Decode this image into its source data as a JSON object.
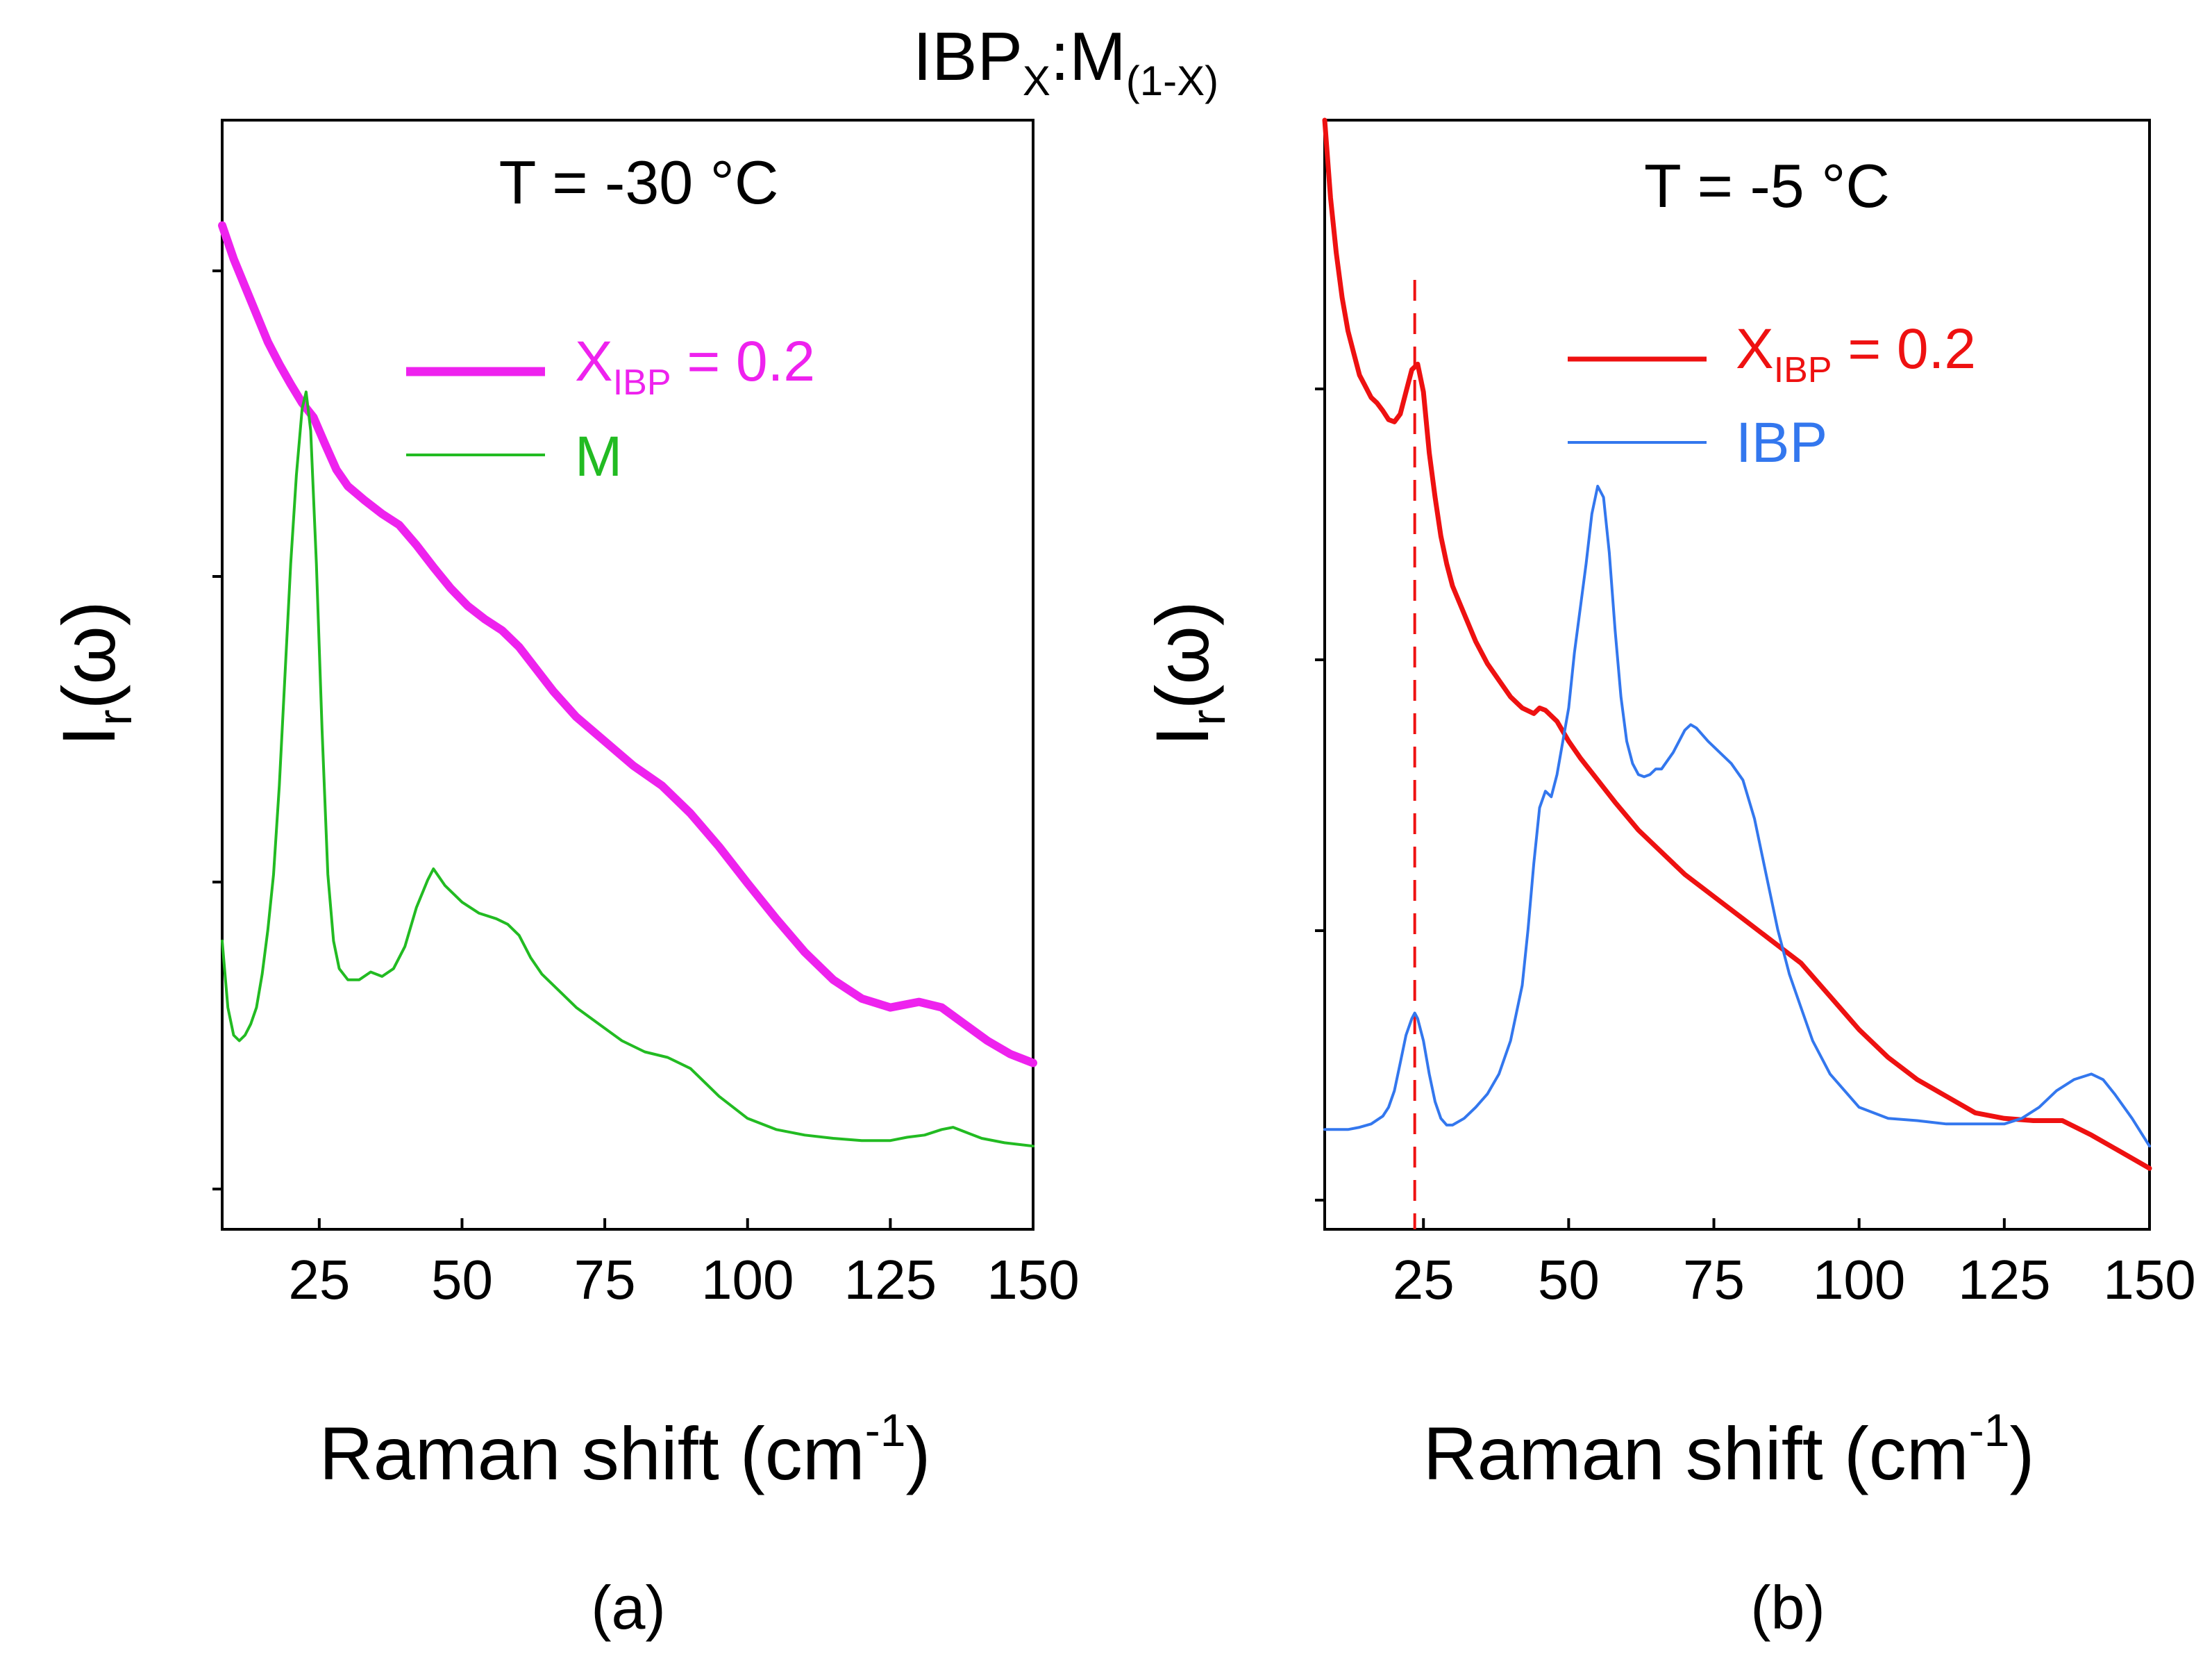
{
  "figure": {
    "title_main": "IBP",
    "title_sub1": "X",
    "title_sep": ":M",
    "title_sub2": "(1-X)"
  },
  "chart_data": [
    {
      "type": "line",
      "panel_caption": "(a)",
      "title": "T = -30 °C",
      "xlabel_main": "Raman shift (cm",
      "xlabel_sup": "-1",
      "xlabel_end": ")",
      "ylabel_main": "I",
      "ylabel_sub": "r",
      "ylabel_end": "(ω)",
      "xlim": [
        8,
        150
      ],
      "ylim": [
        0,
        1
      ],
      "xticks": [
        "25",
        "50",
        "75",
        "100",
        "125",
        "150"
      ],
      "legend_position": "top-right",
      "series": [
        {
          "name_main": "X",
          "name_sub": "IBP",
          "name_end": " = 0.2",
          "color": "#ee22ee",
          "x": [
            8,
            10,
            12,
            14,
            16,
            18,
            20,
            22,
            24,
            26,
            28,
            30,
            33,
            36,
            39,
            42,
            45,
            48,
            51,
            54,
            57,
            60,
            63,
            66,
            70,
            75,
            80,
            85,
            90,
            95,
            100,
            105,
            110,
            115,
            120,
            125,
            130,
            134,
            138,
            142,
            146,
            150
          ],
          "y": [
            0.905,
            0.875,
            0.85,
            0.825,
            0.8,
            0.78,
            0.762,
            0.745,
            0.732,
            0.708,
            0.685,
            0.67,
            0.657,
            0.645,
            0.635,
            0.617,
            0.597,
            0.578,
            0.562,
            0.55,
            0.54,
            0.525,
            0.505,
            0.485,
            0.462,
            0.44,
            0.418,
            0.4,
            0.375,
            0.345,
            0.312,
            0.28,
            0.25,
            0.225,
            0.208,
            0.2,
            0.205,
            0.2,
            0.185,
            0.17,
            0.158,
            0.15
          ]
        },
        {
          "name_main": "M",
          "name_sub": "",
          "name_end": "",
          "color": "#22bb22",
          "x": [
            8,
            9,
            10,
            11,
            12,
            13,
            14,
            15,
            16,
            17,
            18,
            19,
            20,
            21,
            22,
            22.7,
            23.5,
            24.5,
            25.5,
            26.5,
            27.5,
            28.5,
            30,
            32,
            34,
            36,
            38,
            40,
            42,
            44,
            45,
            47,
            50,
            53,
            56,
            58,
            60,
            62,
            64,
            67,
            70,
            74,
            78,
            82,
            86,
            90,
            95,
            100,
            105,
            110,
            115,
            120,
            125,
            128,
            131,
            134,
            136,
            138,
            141,
            145,
            150
          ],
          "y": [
            0.26,
            0.2,
            0.175,
            0.17,
            0.175,
            0.185,
            0.2,
            0.23,
            0.27,
            0.32,
            0.4,
            0.5,
            0.6,
            0.68,
            0.74,
            0.755,
            0.72,
            0.6,
            0.45,
            0.32,
            0.26,
            0.235,
            0.225,
            0.225,
            0.232,
            0.228,
            0.235,
            0.255,
            0.29,
            0.315,
            0.325,
            0.31,
            0.295,
            0.285,
            0.28,
            0.275,
            0.265,
            0.245,
            0.23,
            0.215,
            0.2,
            0.185,
            0.17,
            0.16,
            0.155,
            0.145,
            0.12,
            0.1,
            0.09,
            0.085,
            0.082,
            0.08,
            0.08,
            0.083,
            0.085,
            0.09,
            0.092,
            0.088,
            0.082,
            0.078,
            0.075
          ]
        }
      ]
    },
    {
      "type": "line",
      "panel_caption": "(b)",
      "title": "T = -5 °C",
      "xlabel_main": "Raman shift (cm",
      "xlabel_sup": "-1",
      "xlabel_end": ")",
      "ylabel_main": "I",
      "ylabel_sub": "r",
      "ylabel_end": "(ω)",
      "xlim": [
        8,
        150
      ],
      "ylim": [
        0,
        1
      ],
      "xticks": [
        "25",
        "50",
        "75",
        "100",
        "125",
        "150"
      ],
      "legend_position": "top-right",
      "reference_line_x": 23.5,
      "series": [
        {
          "name_main": "X",
          "name_sub": "IBP",
          "name_end": " = 0.2",
          "color": "#ee1111",
          "x": [
            8,
            9,
            10,
            11,
            12,
            13,
            14,
            15,
            16,
            17,
            18,
            19,
            20,
            21,
            22,
            23,
            24,
            25,
            26,
            27,
            28,
            29,
            30,
            32,
            34,
            36,
            38,
            40,
            42,
            44,
            45,
            46,
            48,
            50,
            52,
            55,
            58,
            62,
            66,
            70,
            75,
            80,
            85,
            90,
            95,
            100,
            105,
            110,
            115,
            120,
            125,
            130,
            135,
            140,
            145,
            150
          ],
          "y": [
            1.0,
            0.93,
            0.88,
            0.84,
            0.81,
            0.79,
            0.77,
            0.76,
            0.75,
            0.745,
            0.738,
            0.73,
            0.728,
            0.735,
            0.755,
            0.775,
            0.78,
            0.755,
            0.7,
            0.66,
            0.625,
            0.6,
            0.58,
            0.555,
            0.53,
            0.51,
            0.495,
            0.48,
            0.47,
            0.465,
            0.47,
            0.468,
            0.458,
            0.44,
            0.425,
            0.405,
            0.385,
            0.36,
            0.34,
            0.32,
            0.3,
            0.28,
            0.26,
            0.24,
            0.21,
            0.18,
            0.155,
            0.135,
            0.12,
            0.105,
            0.1,
            0.098,
            0.098,
            0.085,
            0.07,
            0.055
          ]
        },
        {
          "name_main": "IBP",
          "name_sub": "",
          "name_end": "",
          "color": "#3377ee",
          "x": [
            8,
            10,
            12,
            14,
            16,
            18,
            19,
            20,
            21,
            22,
            23,
            23.5,
            24,
            25,
            26,
            27,
            28,
            29,
            30,
            32,
            34,
            36,
            38,
            40,
            42,
            43,
            44,
            45,
            46,
            47,
            48,
            50,
            51,
            52,
            53,
            54,
            55,
            56,
            57,
            58,
            59,
            60,
            61,
            62,
            63,
            64,
            65,
            66,
            68,
            70,
            71,
            72,
            74,
            76,
            78,
            80,
            82,
            84,
            86,
            88,
            90,
            92,
            95,
            100,
            105,
            110,
            115,
            120,
            125,
            128,
            131,
            134,
            137,
            140,
            142,
            144,
            147,
            150
          ],
          "y": [
            0.09,
            0.09,
            0.09,
            0.092,
            0.095,
            0.102,
            0.11,
            0.125,
            0.15,
            0.175,
            0.19,
            0.195,
            0.19,
            0.17,
            0.14,
            0.115,
            0.1,
            0.094,
            0.094,
            0.1,
            0.11,
            0.122,
            0.14,
            0.17,
            0.22,
            0.27,
            0.33,
            0.38,
            0.395,
            0.39,
            0.41,
            0.47,
            0.52,
            0.56,
            0.6,
            0.645,
            0.67,
            0.66,
            0.61,
            0.54,
            0.48,
            0.44,
            0.42,
            0.41,
            0.408,
            0.41,
            0.415,
            0.415,
            0.43,
            0.45,
            0.455,
            0.452,
            0.44,
            0.43,
            0.42,
            0.405,
            0.37,
            0.32,
            0.27,
            0.23,
            0.2,
            0.17,
            0.14,
            0.11,
            0.1,
            0.098,
            0.095,
            0.095,
            0.095,
            0.1,
            0.11,
            0.125,
            0.135,
            0.14,
            0.135,
            0.122,
            0.1,
            0.075
          ]
        }
      ]
    }
  ],
  "panels": [
    {
      "id": "a"
    },
    {
      "id": "b"
    }
  ]
}
